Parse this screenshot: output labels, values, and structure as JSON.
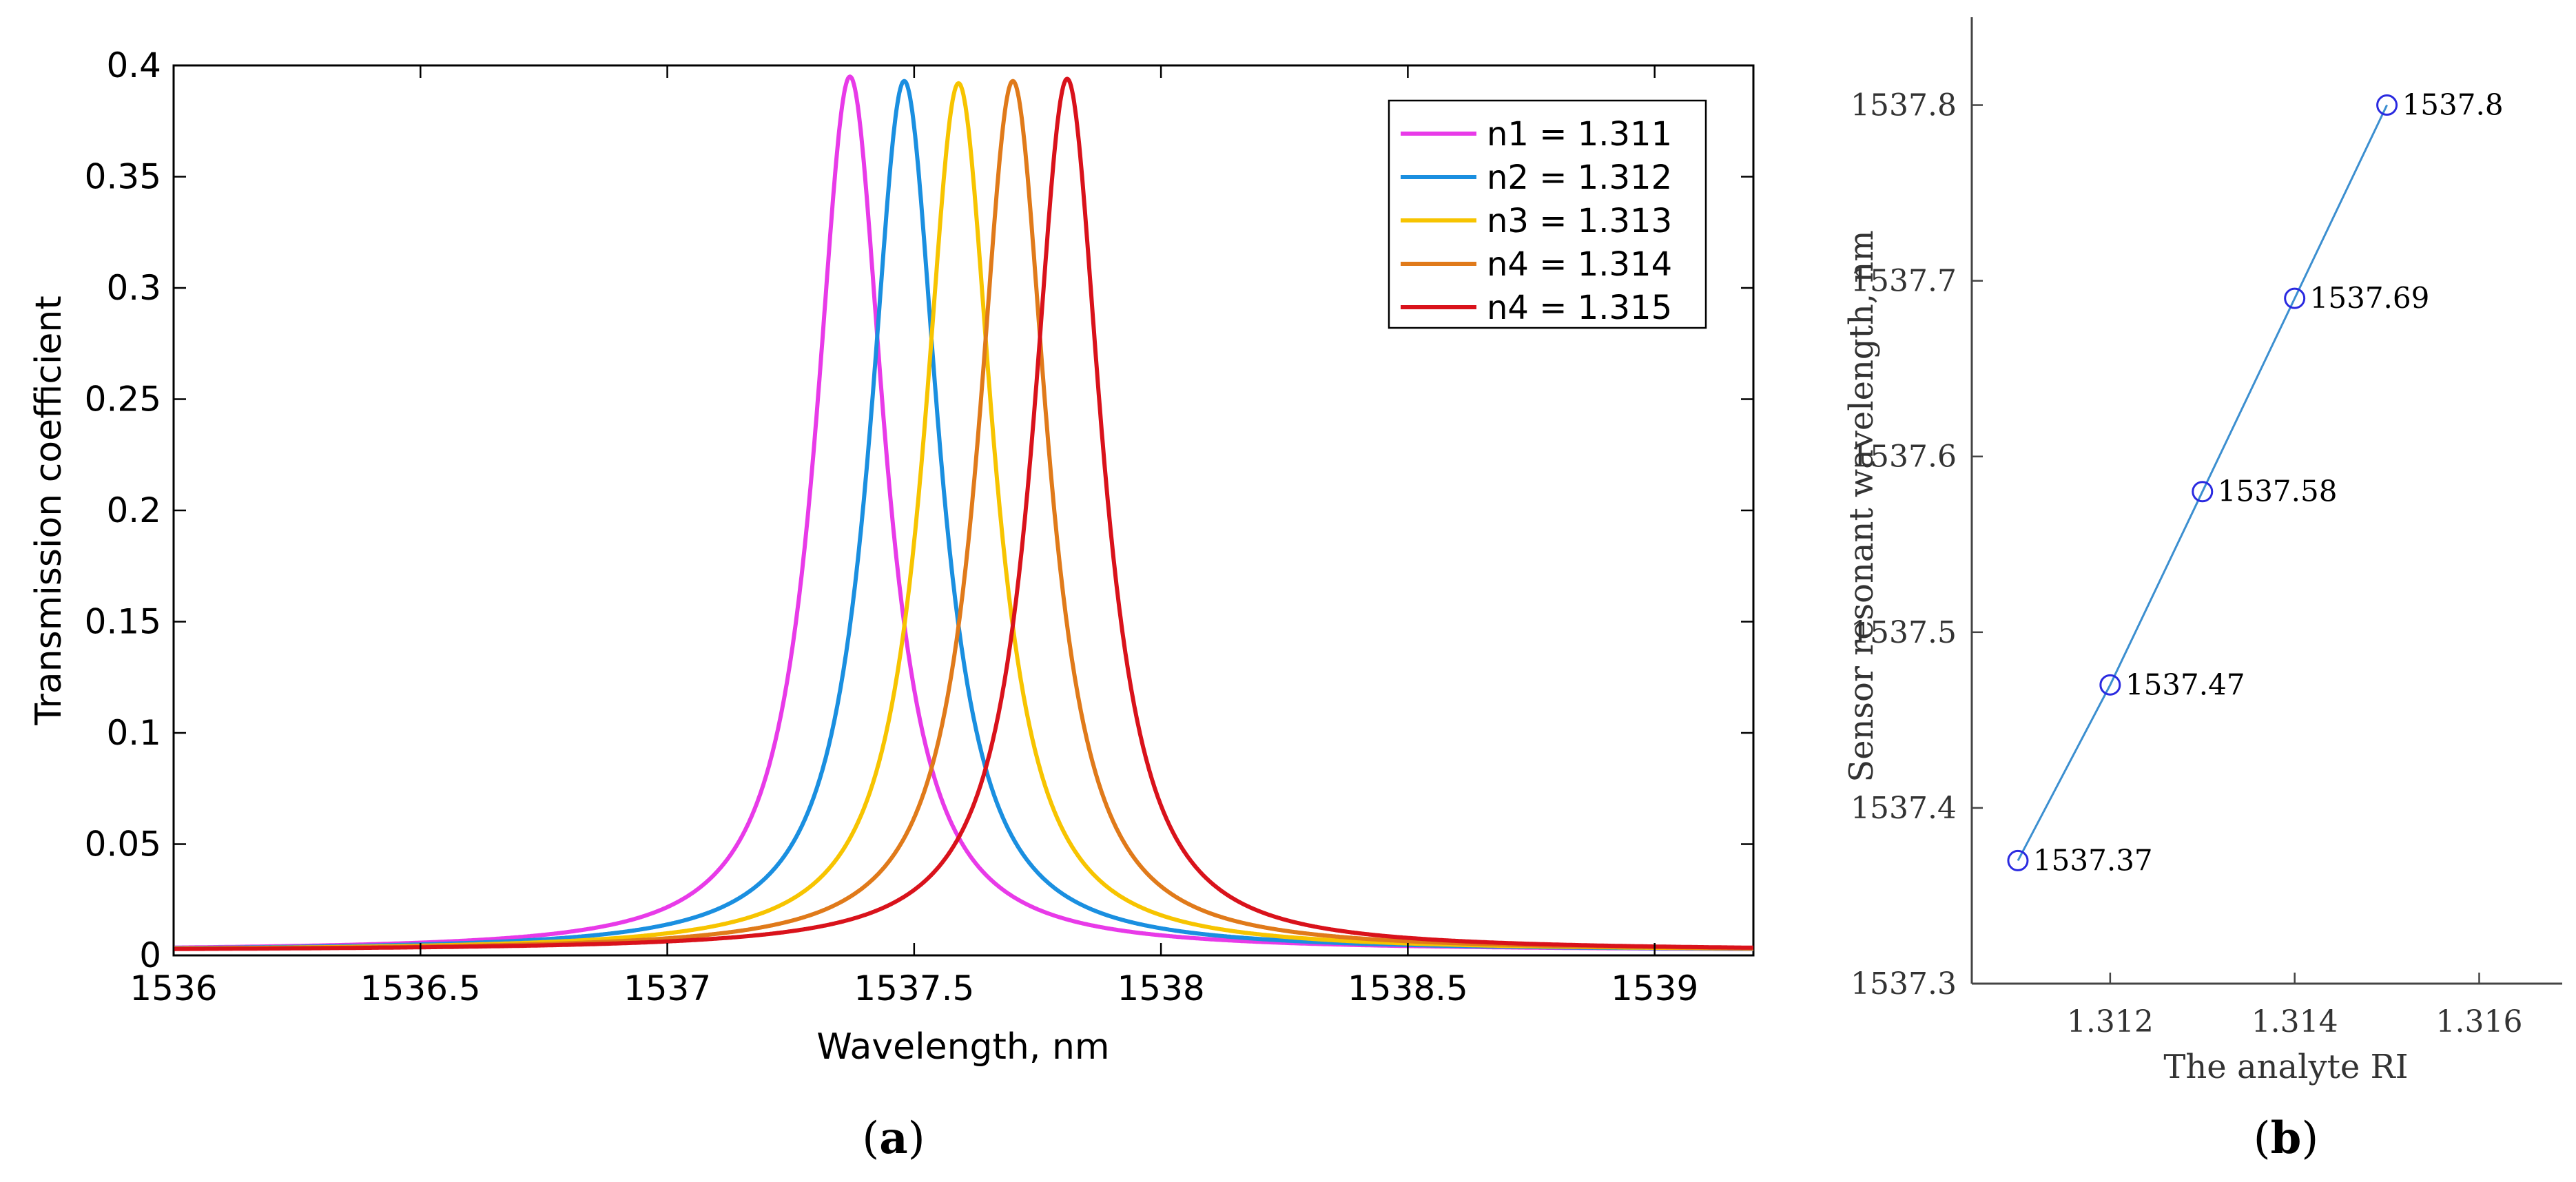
{
  "chart_data": [
    {
      "type": "line",
      "panel_label": "(a)",
      "panel_letter": "a",
      "xlabel": "Wavelength, nm",
      "ylabel": "Transmission coefficient",
      "xlim": [
        1536,
        1539.2
      ],
      "ylim": [
        0,
        0.4
      ],
      "xticks": [
        1536,
        1536.5,
        1537,
        1537.5,
        1538,
        1538.5,
        1539
      ],
      "xtick_labels": [
        "1536",
        "1536.5",
        "1537",
        "1537.5",
        "1538",
        "1538.5",
        "1539"
      ],
      "yticks": [
        0,
        0.05,
        0.1,
        0.15,
        0.2,
        0.25,
        0.3,
        0.35,
        0.4
      ],
      "ytick_labels": [
        "0",
        "0.05",
        "0.1",
        "0.15",
        "0.2",
        "0.25",
        "0.3",
        "0.35",
        "0.4"
      ],
      "legend_position": "top-right",
      "series": [
        {
          "name": "n1 = 1.311",
          "color": "#e83ae8",
          "peak_wavelength": 1537.37,
          "peak_value": 0.395,
          "fwhm": 0.17,
          "baseline": 0.002
        },
        {
          "name": "n2 = 1.312",
          "color": "#1a8fe0",
          "peak_wavelength": 1537.48,
          "peak_value": 0.393,
          "fwhm": 0.17,
          "baseline": 0.002
        },
        {
          "name": "n3 = 1.313",
          "color": "#f7c400",
          "peak_wavelength": 1537.59,
          "peak_value": 0.392,
          "fwhm": 0.17,
          "baseline": 0.002
        },
        {
          "name": "n4 = 1.314",
          "color": "#e07a1a",
          "peak_wavelength": 1537.7,
          "peak_value": 0.393,
          "fwhm": 0.17,
          "baseline": 0.002
        },
        {
          "name": "n4 = 1.315",
          "color": "#d9121b",
          "peak_wavelength": 1537.81,
          "peak_value": 0.394,
          "fwhm": 0.17,
          "baseline": 0.002
        }
      ]
    },
    {
      "type": "line",
      "panel_label": "(b)",
      "panel_letter": "b",
      "xlabel": "The analyte RI",
      "ylabel": "Sensor resonant wavelength, nm",
      "xlim": [
        1.3105,
        1.3169
      ],
      "ylim": [
        1537.3,
        1537.85
      ],
      "xticks": [
        1.312,
        1.314,
        1.316
      ],
      "xtick_labels": [
        "1.312",
        "1.314",
        "1.316"
      ],
      "yticks": [
        1537.3,
        1537.4,
        1537.5,
        1537.6,
        1537.7,
        1537.8
      ],
      "ytick_labels": [
        "1537.3",
        "1537.4",
        "1537.5",
        "1537.6",
        "1537.7",
        "1537.8"
      ],
      "line_color": "#3c8fd0",
      "marker_color": "#2a2ae0",
      "x": [
        1.311,
        1.312,
        1.313,
        1.314,
        1.315
      ],
      "y": [
        1537.37,
        1537.47,
        1537.58,
        1537.69,
        1537.8
      ],
      "point_labels": [
        "1537.37",
        "1537.47",
        "1537.58",
        "1537.69",
        "1537.8"
      ]
    }
  ]
}
